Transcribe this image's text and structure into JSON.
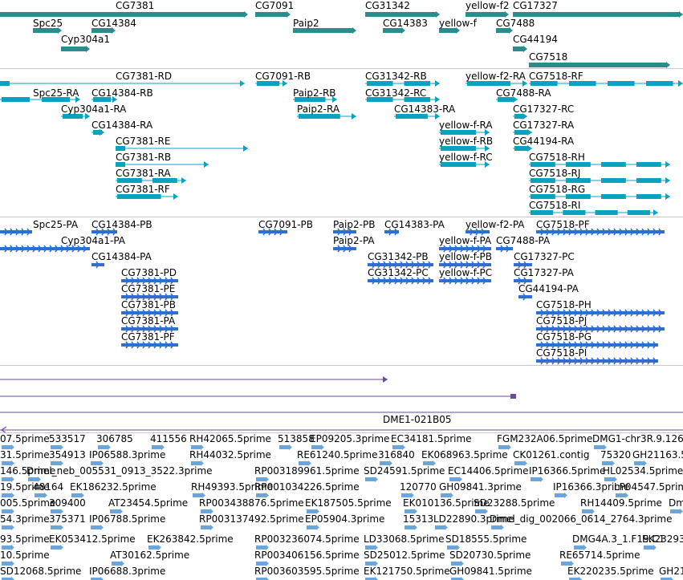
{
  "colors": {
    "gene": "#2a8c8c",
    "mrna": "#0aa2c0",
    "protein": "#2f6fd1",
    "cdna": "#6a4ba0",
    "est": "#6aa6dc",
    "separator": "#c8c8c8"
  },
  "tracks": {
    "genes": [
      {
        "label": "CG7381"
      },
      {
        "label": "CG7091"
      },
      {
        "label": "CG31342"
      },
      {
        "label": "yellow-f2"
      },
      {
        "label": "CG17327"
      },
      {
        "label": "Spc25"
      },
      {
        "label": "CG14384"
      },
      {
        "label": "Paip2"
      },
      {
        "label": "CG14383"
      },
      {
        "label": "yellow-f"
      },
      {
        "label": "CG7488"
      },
      {
        "label": "Cyp304a1"
      },
      {
        "label": "CG44194"
      },
      {
        "label": "CG7518"
      }
    ],
    "transcripts": [
      {
        "label": "CG7381-RD"
      },
      {
        "label": "CG7091-RB"
      },
      {
        "label": "CG31342-RB"
      },
      {
        "label": "yellow-f2-RA"
      },
      {
        "label": "CG7518-RF"
      },
      {
        "label": "Spc25-RA"
      },
      {
        "label": "CG14384-RB"
      },
      {
        "label": "Paip2-RB"
      },
      {
        "label": "CG31342-RC"
      },
      {
        "label": "CG7488-RA"
      },
      {
        "label": "Cyp304a1-RA"
      },
      {
        "label": "Paip2-RA"
      },
      {
        "label": "CG14383-RA"
      },
      {
        "label": "CG17327-RC"
      },
      {
        "label": "CG14384-RA"
      },
      {
        "label": "yellow-f-RA"
      },
      {
        "label": "CG17327-RA"
      },
      {
        "label": "CG7381-RE"
      },
      {
        "label": "yellow-f-RB"
      },
      {
        "label": "CG44194-RA"
      },
      {
        "label": "CG7381-RB"
      },
      {
        "label": "yellow-f-RC"
      },
      {
        "label": "CG7518-RH"
      },
      {
        "label": "CG7381-RA"
      },
      {
        "label": "CG7518-RJ"
      },
      {
        "label": "CG7381-RF"
      },
      {
        "label": "CG7518-RG"
      },
      {
        "label": "CG7518-RI"
      }
    ],
    "proteins": [
      {
        "label": "Spc25-PA"
      },
      {
        "label": "CG14384-PB"
      },
      {
        "label": "CG7091-PB"
      },
      {
        "label": "Paip2-PB"
      },
      {
        "label": "CG14383-PA"
      },
      {
        "label": "yellow-f2-PA"
      },
      {
        "label": "CG7518-PF"
      },
      {
        "label": "Cyp304a1-PA"
      },
      {
        "label": "Paip2-PA"
      },
      {
        "label": "yellow-f-PA"
      },
      {
        "label": "CG7488-PA"
      },
      {
        "label": "CG14384-PA"
      },
      {
        "label": "CG31342-PB"
      },
      {
        "label": "yellow-f-PB"
      },
      {
        "label": "CG17327-PC"
      },
      {
        "label": "CG7381-PD"
      },
      {
        "label": "CG31342-PC"
      },
      {
        "label": "yellow-f-PC"
      },
      {
        "label": "CG17327-PA"
      },
      {
        "label": "CG7381-PE"
      },
      {
        "label": "CG44194-PA"
      },
      {
        "label": "CG7381-PB"
      },
      {
        "label": "CG7518-PH"
      },
      {
        "label": "CG7381-PA"
      },
      {
        "label": "CG7518-PJ"
      },
      {
        "label": "CG7381-PF"
      },
      {
        "label": "CG7518-PG"
      },
      {
        "label": "CG7518-PI"
      }
    ],
    "cdna": [
      {
        "label": "DME1-021B05"
      }
    ],
    "ests": [
      {
        "label": "07.5prime"
      },
      {
        "label": "533517"
      },
      {
        "label": "306785"
      },
      {
        "label": "411556"
      },
      {
        "label": "RH42065.5prime"
      },
      {
        "label": "513858"
      },
      {
        "label": "EP09205.3prime"
      },
      {
        "label": "EC34181.5prime"
      },
      {
        "label": "FGM232A06.5prime"
      },
      {
        "label": "DMG1-chr3R.9.126"
      },
      {
        "label": "31.5prime"
      },
      {
        "label": "354913"
      },
      {
        "label": "IP06588.3prime"
      },
      {
        "label": "RH44032.5prime"
      },
      {
        "label": "RE61240.5prime"
      },
      {
        "label": "316840"
      },
      {
        "label": "EK068963.5prime"
      },
      {
        "label": "CK01261.contig"
      },
      {
        "label": "75320"
      },
      {
        "label": "GH21163.5"
      },
      {
        "label": "146.5prime"
      },
      {
        "label": "Dmel_neb_005531_0913_3522.3prime"
      },
      {
        "label": "RP003189961.5prime"
      },
      {
        "label": "SD24591.5prime"
      },
      {
        "label": "EC14406.5prime"
      },
      {
        "label": "IP16366.5prime"
      },
      {
        "label": "HL02534.5prime"
      },
      {
        "label": "19.5prime"
      },
      {
        "label": "48164"
      },
      {
        "label": "EK186232.5prime"
      },
      {
        "label": "RH49393.5prime"
      },
      {
        "label": "RP001034226.5prime"
      },
      {
        "label": "120770"
      },
      {
        "label": "GH09841.3prime"
      },
      {
        "label": "IP16366.3prime"
      },
      {
        "label": "LP04547.5prime"
      },
      {
        "label": "005.5prime"
      },
      {
        "label": "309400"
      },
      {
        "label": "AT23454.5prime"
      },
      {
        "label": "RP003438876.5prime"
      },
      {
        "label": "EK187505.5prime"
      },
      {
        "label": "EK010136.5prime"
      },
      {
        "label": "SD23288.5prime"
      },
      {
        "label": "RH14409.5prime"
      },
      {
        "label": "Dm"
      },
      {
        "label": "54.3prime"
      },
      {
        "label": "375371"
      },
      {
        "label": "IP06788.5prime"
      },
      {
        "label": "RP003137492.5prime"
      },
      {
        "label": "EP05904.3prime"
      },
      {
        "label": "15313"
      },
      {
        "label": "LD22890.3prime"
      },
      {
        "label": "Dmel_dig_002066_0614_2764.3prime"
      },
      {
        "label": "93.5prime"
      },
      {
        "label": "EK053412.5prime"
      },
      {
        "label": "EK263842.5prime"
      },
      {
        "label": "RP003236074.5prime"
      },
      {
        "label": "LD33068.5prime"
      },
      {
        "label": "SD18555.5prime"
      },
      {
        "label": "DMG4A.3_1.F19.C1"
      },
      {
        "label": "EK23293"
      },
      {
        "label": "10.5prime"
      },
      {
        "label": "AT30162.5prime"
      },
      {
        "label": "RP003406156.5prime"
      },
      {
        "label": "SD25012.5prime"
      },
      {
        "label": "SD20730.5prime"
      },
      {
        "label": "RE65714.5prime"
      },
      {
        "label": "SD12068.5prime"
      },
      {
        "label": "IP06688.3prime"
      },
      {
        "label": "RP003603595.5prime"
      },
      {
        "label": "EK121750.5prime"
      },
      {
        "label": "GH09841.5prime"
      },
      {
        "label": "EK220235.5prime"
      },
      {
        "label": "GH21"
      }
    ]
  }
}
